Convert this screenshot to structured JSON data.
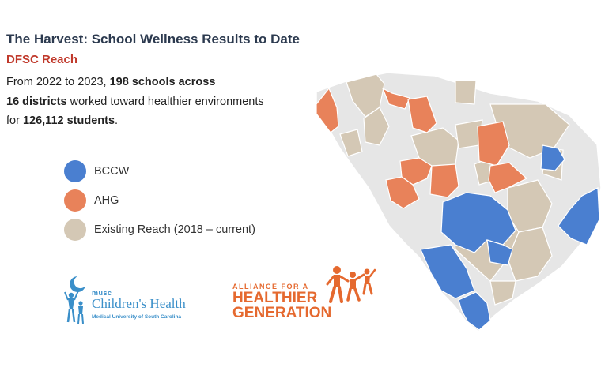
{
  "header": {
    "title": "The Harvest: School Wellness Results to Date",
    "subtitle": "DFSC Reach"
  },
  "description": {
    "line1_pre": "From 2022 to 2023, ",
    "line1_bold": "198 schools across",
    "line2_bold": "16 districts",
    "line2_post": " worked toward healthier environments",
    "line3_pre": "for ",
    "line3_bold": "126,112 students",
    "line3_post": "."
  },
  "legend": [
    {
      "label": "BCCW",
      "color": "#4a7fd0"
    },
    {
      "label": "AHG",
      "color": "#e8825a"
    },
    {
      "label": "Existing Reach (2018 – current)",
      "color": "#d4c8b5"
    }
  ],
  "map": {
    "colors": {
      "bccw": "#4a7fd0",
      "ahg": "#e8825a",
      "existing": "#d4c8b5",
      "none": "#e6e6e6",
      "border": "#ffffff"
    }
  },
  "logos": {
    "musc": {
      "small": "musc",
      "name": "Children's Health",
      "tagline": "Medical University of South Carolina"
    },
    "ahg": {
      "top": "ALLIANCE FOR A",
      "line1": "HEALTHIER",
      "line2": "GENERATION"
    }
  }
}
